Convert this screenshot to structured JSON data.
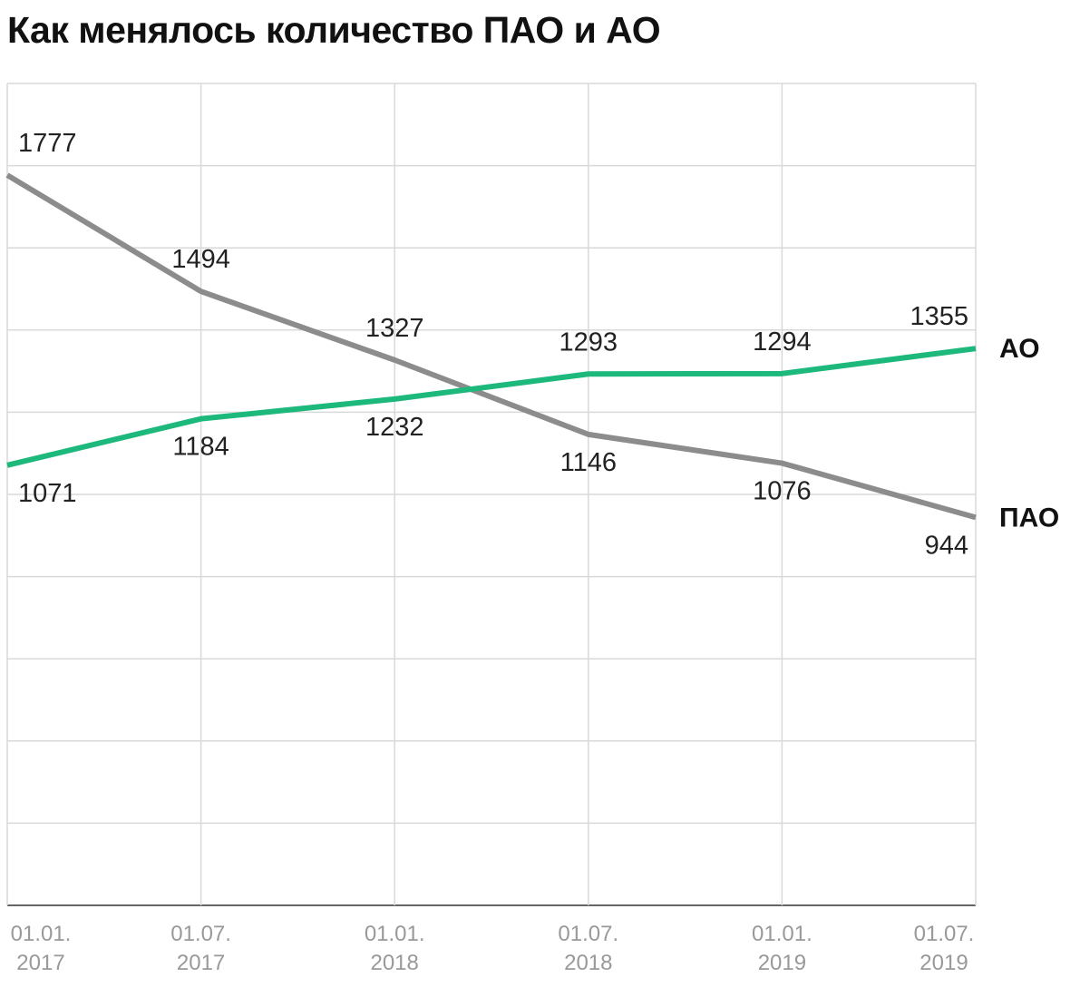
{
  "chart_data": {
    "type": "line",
    "title": "Как менялось количество ПАО и АО",
    "categories": [
      "01.01. 2017",
      "01.07. 2017",
      "01.01. 2018",
      "01.07. 2018",
      "01.01. 2019",
      "01.07. 2019"
    ],
    "series": [
      {
        "name": "ПАО",
        "color": "#8c8c8c",
        "values": [
          1777,
          1494,
          1327,
          1146,
          1076,
          944
        ]
      },
      {
        "name": "АО",
        "color": "#1db87b",
        "values": [
          1071,
          1184,
          1232,
          1293,
          1294,
          1355
        ]
      }
    ],
    "ylim": [
      0,
      2000
    ],
    "yticks": [
      0,
      200,
      400,
      600,
      800,
      1000,
      1200,
      1400,
      1600,
      1800,
      2000
    ],
    "grid": true
  }
}
